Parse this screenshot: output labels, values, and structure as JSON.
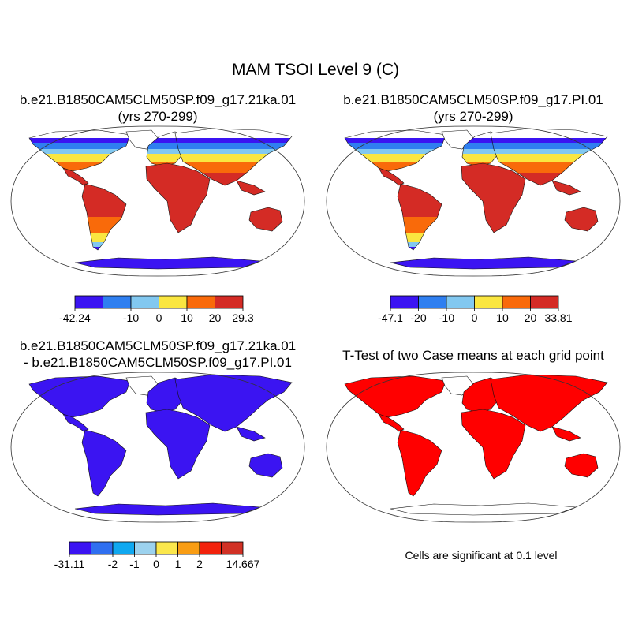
{
  "title": "MAM TSOI Level 9 (C)",
  "panels": [
    {
      "id": "case",
      "title_line1": "b.e21.B1850CAM5CLM50SP.f09_g17.21ka.01",
      "title_line2": "(yrs 270-299)",
      "colorbar": {
        "colors": [
          "#3b14f2",
          "#2f7ff0",
          "#82c8f0",
          "#fae640",
          "#f96a0a",
          "#d42b25"
        ],
        "labels": [
          "-42.24",
          "-10",
          "0",
          "10",
          "20",
          "29.3"
        ],
        "label_boundaries": [
          0,
          2,
          3,
          4,
          5,
          6
        ]
      }
    },
    {
      "id": "control",
      "title_line1": "b.e21.B1850CAM5CLM50SP.f09_g17.PI.01",
      "title_line2": "(yrs 270-299)",
      "colorbar": {
        "colors": [
          "#3b14f2",
          "#2f7ff0",
          "#82c8f0",
          "#fae640",
          "#f96a0a",
          "#d42b25"
        ],
        "labels": [
          "-47.1",
          "-20",
          "-10",
          "0",
          "10",
          "20",
          "33.81"
        ],
        "label_boundaries": [
          0,
          1,
          2,
          3,
          4,
          5,
          6
        ]
      }
    },
    {
      "id": "difference",
      "title_line1": "b.e21.B1850CAM5CLM50SP.f09_g17.21ka.01",
      "title_line2": "- b.e21.B1850CAM5CLM50SP.f09_g17.PI.01",
      "colorbar": {
        "colors": [
          "#3b14f2",
          "#2f6ff0",
          "#10a8f0",
          "#9cd2ee",
          "#fbe74c",
          "#f99d14",
          "#f2220c",
          "#d13125"
        ],
        "labels": [
          "-31.11",
          "-2",
          "-1",
          "0",
          "1",
          "2",
          "14.667"
        ],
        "label_boundaries": [
          0,
          2,
          3,
          4,
          5,
          6,
          8
        ]
      }
    },
    {
      "id": "ttest",
      "title_line1": "T-Test of two Case means at each grid point",
      "note": "Cells are significant at 0.1 level",
      "fill_color": "#ff0000"
    }
  ]
}
